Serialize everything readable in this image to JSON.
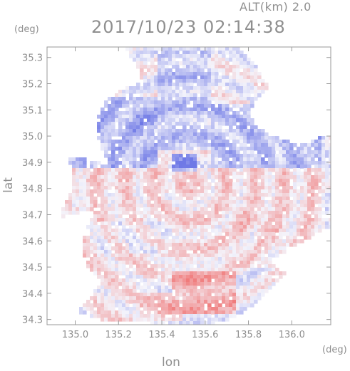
{
  "header": {
    "altitude": "ALT(km) 2.0",
    "timestamp": "2017/10/23 02:14:38"
  },
  "chart_data": {
    "type": "heatmap",
    "title": "2017/10/23 02:14:38",
    "subtitle": "ALT(km) 2.0",
    "xlabel": "lon",
    "ylabel": "lat",
    "x_unit": "(deg)",
    "y_unit": "(deg)",
    "xlim": [
      134.87,
      136.18
    ],
    "ylim": [
      34.28,
      35.34
    ],
    "x_ticks": [
      135.0,
      135.2,
      135.4,
      135.6,
      135.8,
      136.0
    ],
    "x_tick_labels": [
      "135.0",
      "135.2",
      "135.4",
      "135.6",
      "135.8",
      "136.0"
    ],
    "y_ticks": [
      34.3,
      34.4,
      34.5,
      34.6,
      34.7,
      34.8,
      34.9,
      35.0,
      35.1,
      35.2,
      35.3
    ],
    "y_tick_labels": [
      "34.3",
      "34.4",
      "34.5",
      "34.6",
      "34.7",
      "34.8",
      "34.9",
      "35.0",
      "35.1",
      "35.2",
      "35.3"
    ],
    "radar_center": [
      135.52,
      34.82
    ],
    "colors": {
      "negative": "#6f79e6",
      "neutral": "#f4f4fb",
      "positive": "#f07a7a"
    },
    "regions": [
      {
        "lon": [
          134.87,
          135.38
        ],
        "lat": [
          34.88,
          35.15
        ],
        "level": -0.45
      },
      {
        "lon": [
          135.38,
          135.62
        ],
        "lat": [
          34.95,
          35.33
        ],
        "level": -0.35
      },
      {
        "lon": [
          135.62,
          136.14
        ],
        "lat": [
          34.88,
          35.12
        ],
        "level": -0.4
      },
      {
        "lon": [
          134.87,
          136.18
        ],
        "lat": [
          34.78,
          34.88
        ],
        "level": 0.25
      },
      {
        "lon": [
          135.0,
          136.16
        ],
        "lat": [
          34.5,
          34.78
        ],
        "level": 0.2
      },
      {
        "lon": [
          135.05,
          135.38
        ],
        "lat": [
          34.3,
          34.5
        ],
        "level": 0.15
      },
      {
        "lon": [
          135.45,
          135.75
        ],
        "lat": [
          34.32,
          34.48
        ],
        "level": 0.55
      },
      {
        "lon": [
          135.3,
          135.5
        ],
        "lat": [
          34.3,
          34.4
        ],
        "level": 0.45
      },
      {
        "lon": [
          135.1,
          135.45
        ],
        "lat": [
          34.55,
          34.68
        ],
        "level": -0.15
      },
      {
        "lon": [
          135.27,
          135.36
        ],
        "lat": [
          35.0,
          35.1
        ],
        "level": -0.75
      },
      {
        "lon": [
          135.44,
          135.56
        ],
        "lat": [
          34.86,
          34.93
        ],
        "level": -0.8
      },
      {
        "lon": [
          135.75,
          135.95
        ],
        "lat": [
          34.64,
          34.72
        ],
        "level": 0.45
      }
    ]
  }
}
